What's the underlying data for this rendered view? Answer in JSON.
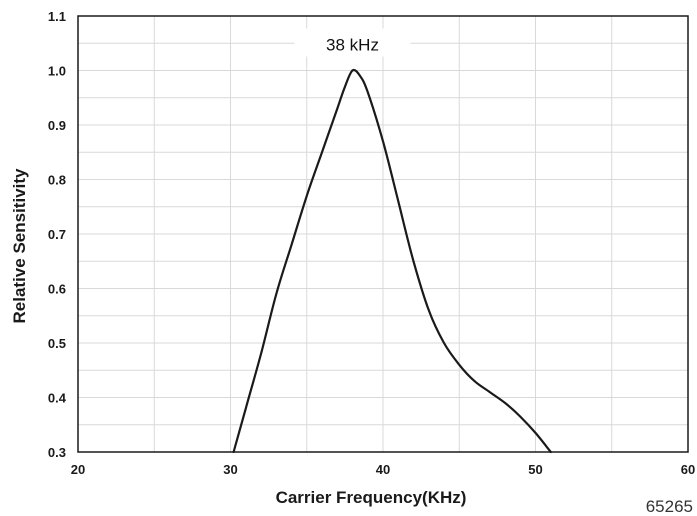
{
  "chart_data": {
    "type": "line",
    "xlabel": "Carrier Frequency(KHz)",
    "ylabel": "Relative Sensitivity",
    "xlim": [
      20,
      60
    ],
    "ylim": [
      0.3,
      1.1
    ],
    "x_ticks": [
      "20",
      "30",
      "40",
      "50",
      "60"
    ],
    "y_ticks": [
      "0.3",
      "0.4",
      "0.5",
      "0.6",
      "0.7",
      "0.8",
      "0.9",
      "1.0",
      "1.1"
    ],
    "grid": true,
    "annotations": [
      {
        "text": "38 kHz",
        "x": 38,
        "y": 1.0
      }
    ],
    "series": [
      {
        "x": [
          30.2,
          31,
          32,
          33,
          34,
          35,
          36,
          37,
          37.5,
          38,
          38.5,
          39,
          40,
          41,
          42,
          43,
          44,
          45,
          46,
          47,
          48,
          49,
          50,
          51
        ],
        "values": [
          0.3,
          0.38,
          0.48,
          0.59,
          0.68,
          0.77,
          0.85,
          0.93,
          0.97,
          1.0,
          0.99,
          0.96,
          0.87,
          0.76,
          0.65,
          0.56,
          0.5,
          0.46,
          0.43,
          0.41,
          0.39,
          0.365,
          0.335,
          0.3
        ],
        "color": "#1a1a1a"
      }
    ]
  },
  "figure_number": "65265"
}
